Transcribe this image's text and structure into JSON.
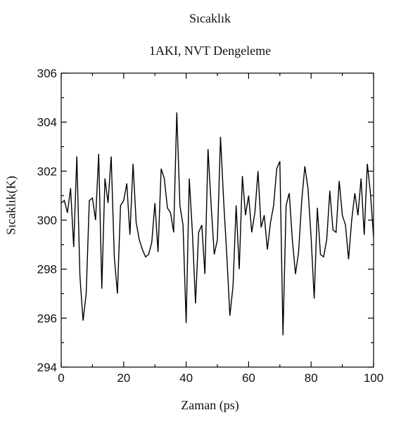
{
  "chart_data": {
    "type": "line",
    "title": "Sıcaklık",
    "subtitle": "1AKI, NVT Dengeleme",
    "xlabel": "Zaman (ps)",
    "ylabel": "Sıcaklık(K)",
    "xlim": [
      0,
      100
    ],
    "ylim": [
      294,
      306
    ],
    "xticks": [
      0,
      20,
      40,
      60,
      80,
      100
    ],
    "yticks": [
      294,
      296,
      298,
      300,
      302,
      304,
      306
    ],
    "grid": false,
    "line_color": "#000000",
    "series": [
      {
        "x": [
          0,
          1,
          2,
          3,
          4,
          5,
          6,
          7,
          8,
          9,
          10,
          11,
          12,
          13,
          14,
          15,
          16,
          17,
          18,
          19,
          20,
          21,
          22,
          23,
          24,
          25,
          26,
          27,
          28,
          29,
          30,
          31,
          32,
          33,
          34,
          35,
          36,
          37,
          38,
          39,
          40,
          41,
          42,
          43,
          44,
          45,
          46,
          47,
          48,
          49,
          50,
          51,
          52,
          53,
          54,
          55,
          56,
          57,
          58,
          59,
          60,
          61,
          62,
          63,
          64,
          65,
          66,
          67,
          68,
          69,
          70,
          71,
          72,
          73,
          74,
          75,
          76,
          77,
          78,
          79,
          80,
          81,
          82,
          83,
          84,
          85,
          86,
          87,
          88,
          89,
          90,
          91,
          92,
          93,
          94,
          95,
          96,
          97,
          98,
          99,
          100
        ],
        "y": [
          300.7,
          300.8,
          300.3,
          301.3,
          298.9,
          302.6,
          297.7,
          295.9,
          297.0,
          300.8,
          300.9,
          300.0,
          302.7,
          297.2,
          301.7,
          300.7,
          302.6,
          298.5,
          297.0,
          300.6,
          300.8,
          301.5,
          299.4,
          302.3,
          299.9,
          299.2,
          298.8,
          298.5,
          298.6,
          299.1,
          300.7,
          298.7,
          302.1,
          301.7,
          300.5,
          300.3,
          299.5,
          304.4,
          300.6,
          299.8,
          295.8,
          301.7,
          299.5,
          296.6,
          299.5,
          299.8,
          297.8,
          302.9,
          300.6,
          298.6,
          299.2,
          303.4,
          300.8,
          298.6,
          296.1,
          297.3,
          300.6,
          298.0,
          301.8,
          300.2,
          301.0,
          299.5,
          300.3,
          302.0,
          299.7,
          300.2,
          298.8,
          299.9,
          300.6,
          302.1,
          302.4,
          295.3,
          300.6,
          301.1,
          299.2,
          297.8,
          298.7,
          300.8,
          302.2,
          301.3,
          299.3,
          296.8,
          300.5,
          298.6,
          298.5,
          299.2,
          301.2,
          299.6,
          299.5,
          301.6,
          300.2,
          299.8,
          298.4,
          300.0,
          301.1,
          300.2,
          301.7,
          299.4,
          302.3,
          301.1,
          299.3
        ]
      }
    ]
  }
}
